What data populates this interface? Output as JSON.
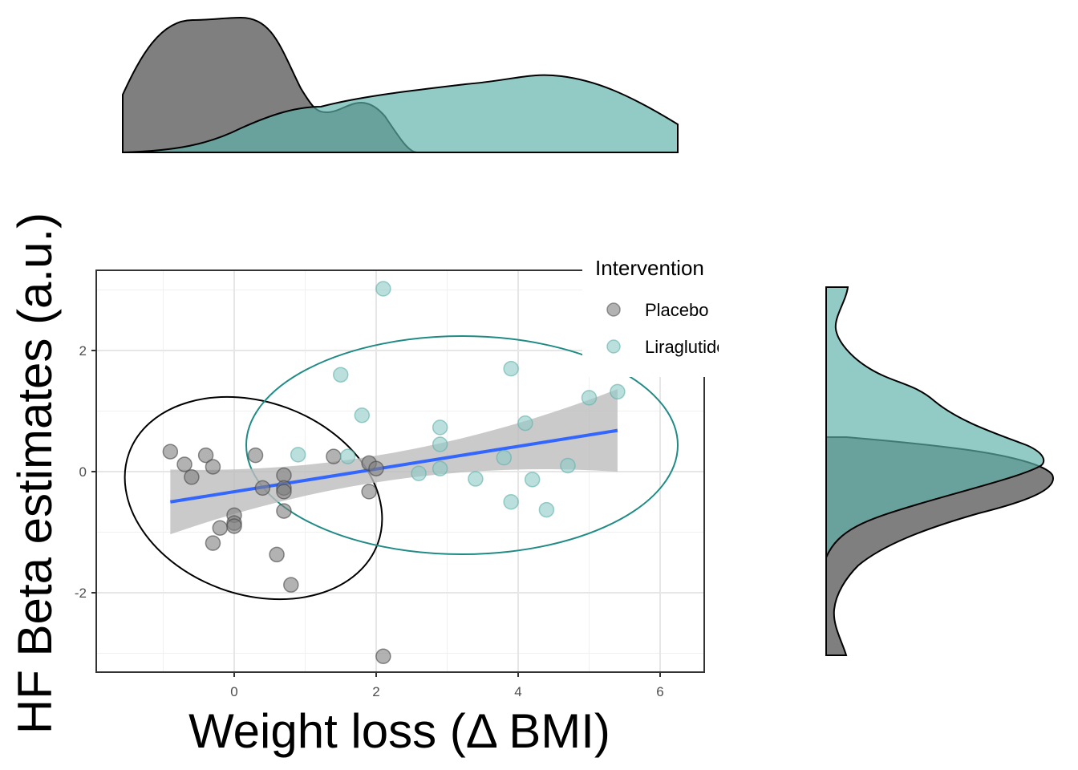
{
  "chart_data": {
    "type": "scatter",
    "xlabel": "Weight loss (Δ BMI)",
    "ylabel": "HF Beta estimates (a.u.)",
    "xlim": [
      -1.95,
      6.6
    ],
    "ylim": [
      -3.3,
      3.3
    ],
    "x_ticks": [
      0,
      2,
      4,
      6
    ],
    "y_ticks": [
      -2,
      0,
      2
    ],
    "grid": true,
    "legend": {
      "title": "Intervention",
      "position": "right-top"
    },
    "colors": {
      "Placebo": "#7f7f7f",
      "Liraglutide": "#5fb1aa",
      "Liraglutide_ellipse": "#1f8b84",
      "fit_line": "#3366ff",
      "ribbon": "#c8c8c8"
    },
    "series": [
      {
        "name": "Placebo",
        "points": [
          [
            -0.9,
            0.33
          ],
          [
            -0.7,
            0.12
          ],
          [
            -0.6,
            -0.09
          ],
          [
            -0.4,
            0.27
          ],
          [
            -0.3,
            0.08
          ],
          [
            -0.2,
            -0.93
          ],
          [
            -0.3,
            -1.18
          ],
          [
            0.0,
            -0.72
          ],
          [
            0.0,
            -0.85
          ],
          [
            0.0,
            -0.9
          ],
          [
            0.3,
            0.27
          ],
          [
            0.4,
            -0.27
          ],
          [
            0.6,
            -1.37
          ],
          [
            0.7,
            -0.06
          ],
          [
            0.7,
            -0.27
          ],
          [
            0.7,
            -0.33
          ],
          [
            0.7,
            -0.65
          ],
          [
            0.8,
            -1.87
          ],
          [
            1.4,
            0.25
          ],
          [
            1.9,
            0.14
          ],
          [
            1.9,
            -0.33
          ],
          [
            2.0,
            0.05
          ],
          [
            2.1,
            -3.05
          ]
        ]
      },
      {
        "name": "Liraglutide",
        "points": [
          [
            0.9,
            0.28
          ],
          [
            1.5,
            1.6
          ],
          [
            1.6,
            0.25
          ],
          [
            1.8,
            0.93
          ],
          [
            2.1,
            3.02
          ],
          [
            2.6,
            -0.03
          ],
          [
            2.9,
            0.45
          ],
          [
            2.9,
            0.73
          ],
          [
            2.9,
            0.05
          ],
          [
            3.4,
            -0.12
          ],
          [
            3.8,
            0.23
          ],
          [
            3.9,
            1.7
          ],
          [
            3.9,
            -0.5
          ],
          [
            4.1,
            0.8
          ],
          [
            4.2,
            -0.13
          ],
          [
            4.4,
            -0.63
          ],
          [
            4.7,
            0.1
          ],
          [
            5.0,
            1.22
          ],
          [
            5.4,
            1.32
          ]
        ]
      }
    ],
    "fit": {
      "x": [
        -0.9,
        5.4
      ],
      "y": [
        -0.5,
        0.68
      ],
      "ci_lower": [
        -1.02,
        0.1
      ],
      "ci_upper": [
        0.05,
        1.35
      ]
    },
    "top_density": {
      "x_range": [
        -1.55,
        6.25
      ]
    },
    "right_density": {
      "y_range": [
        -3.05,
        3.02
      ]
    }
  }
}
